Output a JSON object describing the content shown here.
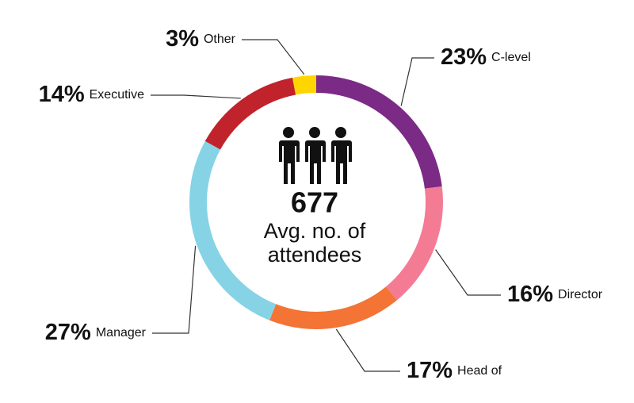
{
  "chart_data": {
    "type": "donut",
    "categories": [
      "C-level",
      "Director",
      "Head of",
      "Manager",
      "Executive",
      "Other"
    ],
    "values": [
      23,
      16,
      17,
      27,
      14,
      3
    ],
    "value_labels": [
      "23%",
      "16%",
      "17%",
      "27%",
      "14%",
      "3%"
    ],
    "colors": [
      "#7b2a86",
      "#f47b94",
      "#f37434",
      "#86d3e6",
      "#c1232c",
      "#ffd500"
    ],
    "center_value": 677,
    "center_label": [
      "Avg. no. of",
      "attendees"
    ]
  }
}
